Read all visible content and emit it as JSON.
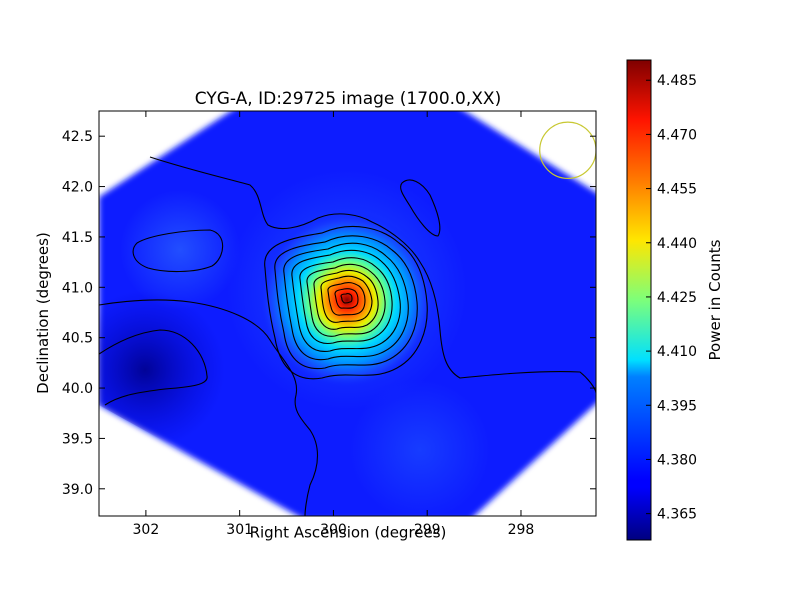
{
  "chart_data": {
    "type": "heatmap",
    "title": "CYG-A, ID:29725 image (1700.0,XX)",
    "xlabel": "Right Ascension (degrees)",
    "ylabel": "Declination (degrees)",
    "xlim": [
      302.5,
      297.2
    ],
    "ylim": [
      38.73,
      42.75
    ],
    "x_ticks": [
      302,
      301,
      300,
      299,
      298
    ],
    "y_ticks": [
      39.0,
      39.5,
      40.0,
      40.5,
      41.0,
      41.5,
      42.0,
      42.5
    ],
    "x_tick_labels": [
      "302",
      "301",
      "300",
      "299",
      "298"
    ],
    "y_tick_labels": [
      "39.0",
      "39.5",
      "40.0",
      "40.5",
      "41.0",
      "41.5",
      "42.0",
      "42.5"
    ],
    "colorbar": {
      "label": "Power in Counts",
      "range": [
        4.3577,
        4.4906
      ],
      "colormap": "jet",
      "ticks": [
        4.365,
        4.38,
        4.395,
        4.41,
        4.425,
        4.44,
        4.455,
        4.47,
        4.485
      ],
      "tick_labels": [
        "4.365",
        "4.380",
        "4.395",
        "4.410",
        "4.425",
        "4.440",
        "4.455",
        "4.470",
        "4.485"
      ]
    },
    "peak": {
      "ra": 299.85,
      "dec": 40.72,
      "value": 4.49
    },
    "footprint": "diamond",
    "beam_circle": {
      "ra": 297.5,
      "dec": 42.36,
      "radius_deg": 0.3,
      "color": "#c8c832"
    },
    "contours": "black",
    "grid": false
  }
}
